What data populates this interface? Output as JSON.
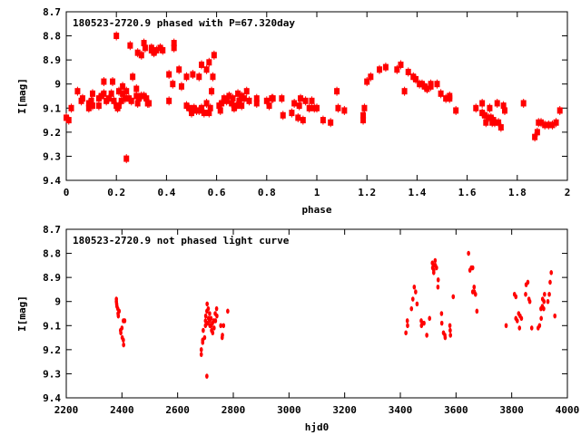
{
  "colors": {
    "points": "#ff0000",
    "axis": "#000000"
  },
  "chart_data": [
    {
      "type": "scatter",
      "title": "180523-2720.9 phased with P=67.320day",
      "xlabel": "phase",
      "ylabel": "I[mag]",
      "xlim": [
        0,
        2
      ],
      "ylim": [
        8.7,
        9.4
      ],
      "y_inverted": true,
      "xticks": [
        "0",
        "0.2",
        "0.4",
        "0.6",
        "0.8",
        "1",
        "1.2",
        "1.4",
        "1.6",
        "1.8",
        "2"
      ],
      "xtick_values": [
        0,
        0.2,
        0.4,
        0.6,
        0.8,
        1,
        1.2,
        1.4,
        1.6,
        1.8,
        2
      ],
      "yticks": [
        "8.7",
        "8.8",
        "8.9",
        "9",
        "9.1",
        "9.2",
        "9.3",
        "9.4"
      ],
      "ytick_values": [
        8.7,
        8.8,
        8.9,
        9.0,
        9.1,
        9.2,
        9.3,
        9.4
      ],
      "grid": false,
      "marker": "square-errorbar",
      "points": [
        [
          0.0,
          9.14
        ],
        [
          0.01,
          9.15
        ],
        [
          0.02,
          9.1
        ],
        [
          0.045,
          9.03
        ],
        [
          0.06,
          9.07
        ],
        [
          0.065,
          9.06
        ],
        [
          0.09,
          9.08
        ],
        [
          0.09,
          9.1
        ],
        [
          0.1,
          9.07
        ],
        [
          0.105,
          9.09
        ],
        [
          0.105,
          9.04
        ],
        [
          0.13,
          9.06
        ],
        [
          0.13,
          9.09
        ],
        [
          0.14,
          9.05
        ],
        [
          0.15,
          8.99
        ],
        [
          0.15,
          9.04
        ],
        [
          0.16,
          9.07
        ],
        [
          0.17,
          9.06
        ],
        [
          0.18,
          9.04
        ],
        [
          0.185,
          8.99
        ],
        [
          0.19,
          9.07
        ],
        [
          0.2,
          9.09
        ],
        [
          0.205,
          9.1
        ],
        [
          0.2,
          8.8
        ],
        [
          0.21,
          9.03
        ],
        [
          0.21,
          9.09
        ],
        [
          0.22,
          9.07
        ],
        [
          0.225,
          9.04
        ],
        [
          0.225,
          9.01
        ],
        [
          0.235,
          9.06
        ],
        [
          0.24,
          9.03
        ],
        [
          0.24,
          9.31
        ],
        [
          0.25,
          9.06
        ],
        [
          0.255,
          8.84
        ],
        [
          0.26,
          9.07
        ],
        [
          0.265,
          8.97
        ],
        [
          0.28,
          9.02
        ],
        [
          0.28,
          9.05
        ],
        [
          0.285,
          9.08
        ],
        [
          0.285,
          8.87
        ],
        [
          0.29,
          9.06
        ],
        [
          0.3,
          9.05
        ],
        [
          0.3,
          8.88
        ],
        [
          0.31,
          8.83
        ],
        [
          0.31,
          9.05
        ],
        [
          0.315,
          8.85
        ],
        [
          0.32,
          9.06
        ],
        [
          0.325,
          9.08
        ],
        [
          0.33,
          9.08
        ],
        [
          0.34,
          8.86
        ],
        [
          0.34,
          8.85
        ],
        [
          0.35,
          8.87
        ],
        [
          0.36,
          8.86
        ],
        [
          0.375,
          8.85
        ],
        [
          0.385,
          8.86
        ],
        [
          0.41,
          9.07
        ],
        [
          0.41,
          8.96
        ],
        [
          0.425,
          9.0
        ],
        [
          0.43,
          8.83
        ],
        [
          0.43,
          8.85
        ],
        [
          0.45,
          8.94
        ],
        [
          0.46,
          9.01
        ],
        [
          0.48,
          8.97
        ],
        [
          0.48,
          9.09
        ],
        [
          0.49,
          9.1
        ],
        [
          0.5,
          9.11
        ],
        [
          0.5,
          9.12
        ],
        [
          0.505,
          8.96
        ],
        [
          0.51,
          9.1
        ],
        [
          0.52,
          9.11
        ],
        [
          0.53,
          9.11
        ],
        [
          0.53,
          8.97
        ],
        [
          0.54,
          8.92
        ],
        [
          0.54,
          9.1
        ],
        [
          0.55,
          9.12
        ],
        [
          0.56,
          9.08
        ],
        [
          0.56,
          8.94
        ],
        [
          0.57,
          9.12
        ],
        [
          0.57,
          8.91
        ],
        [
          0.575,
          9.1
        ],
        [
          0.58,
          9.03
        ],
        [
          0.585,
          8.97
        ],
        [
          0.59,
          8.88
        ],
        [
          0.61,
          9.09
        ],
        [
          0.615,
          9.11
        ],
        [
          0.62,
          9.08
        ],
        [
          0.63,
          9.06
        ],
        [
          0.64,
          9.07
        ],
        [
          0.65,
          9.05
        ],
        [
          0.66,
          9.08
        ],
        [
          0.665,
          9.06
        ],
        [
          0.67,
          9.1
        ],
        [
          0.68,
          9.09
        ],
        [
          0.685,
          9.04
        ],
        [
          0.69,
          9.07
        ],
        [
          0.7,
          9.05
        ],
        [
          0.7,
          9.09
        ],
        [
          0.71,
          9.06
        ],
        [
          0.72,
          9.03
        ],
        [
          0.73,
          9.07
        ],
        [
          0.76,
          9.06
        ],
        [
          0.76,
          9.08
        ],
        [
          0.8,
          9.07
        ],
        [
          0.81,
          9.09
        ],
        [
          0.82,
          9.06
        ],
        [
          0.825,
          9.06
        ],
        [
          0.86,
          9.06
        ],
        [
          0.865,
          9.13
        ],
        [
          0.9,
          9.12
        ],
        [
          0.91,
          9.08
        ],
        [
          0.925,
          9.14
        ],
        [
          0.93,
          9.09
        ],
        [
          0.935,
          9.06
        ],
        [
          0.945,
          9.15
        ],
        [
          0.955,
          9.07
        ],
        [
          0.97,
          9.1
        ],
        [
          0.98,
          9.07
        ],
        [
          0.99,
          9.1
        ],
        [
          1.0,
          9.1
        ],
        [
          1.025,
          9.15
        ],
        [
          1.055,
          9.16
        ],
        [
          1.08,
          9.03
        ],
        [
          1.085,
          9.1
        ],
        [
          1.11,
          9.11
        ],
        [
          1.185,
          9.13
        ],
        [
          1.185,
          9.15
        ],
        [
          1.19,
          9.1
        ],
        [
          1.2,
          8.99
        ],
        [
          1.215,
          8.97
        ],
        [
          1.25,
          8.94
        ],
        [
          1.275,
          8.93
        ],
        [
          1.32,
          8.94
        ],
        [
          1.335,
          8.92
        ],
        [
          1.35,
          9.03
        ],
        [
          1.365,
          8.95
        ],
        [
          1.385,
          8.97
        ],
        [
          1.395,
          8.98
        ],
        [
          1.41,
          9.0
        ],
        [
          1.42,
          9.0
        ],
        [
          1.43,
          9.01
        ],
        [
          1.44,
          9.02
        ],
        [
          1.455,
          9.0
        ],
        [
          1.455,
          9.01
        ],
        [
          1.48,
          9.0
        ],
        [
          1.495,
          9.04
        ],
        [
          1.515,
          9.06
        ],
        [
          1.53,
          9.06
        ],
        [
          1.53,
          9.05
        ],
        [
          1.555,
          9.11
        ],
        [
          1.635,
          9.1
        ],
        [
          1.66,
          9.08
        ],
        [
          1.66,
          9.12
        ],
        [
          1.67,
          9.13
        ],
        [
          1.675,
          9.16
        ],
        [
          1.685,
          9.14
        ],
        [
          1.69,
          9.1
        ],
        [
          1.695,
          9.14
        ],
        [
          1.7,
          9.16
        ],
        [
          1.705,
          9.15
        ],
        [
          1.71,
          9.16
        ],
        [
          1.72,
          9.08
        ],
        [
          1.725,
          9.16
        ],
        [
          1.735,
          9.18
        ],
        [
          1.745,
          9.09
        ],
        [
          1.75,
          9.11
        ],
        [
          1.825,
          9.08
        ],
        [
          1.87,
          9.22
        ],
        [
          1.88,
          9.2
        ],
        [
          1.885,
          9.16
        ],
        [
          1.895,
          9.16
        ],
        [
          1.91,
          9.17
        ],
        [
          1.925,
          9.17
        ],
        [
          1.94,
          9.17
        ],
        [
          1.955,
          9.16
        ],
        [
          1.97,
          9.11
        ]
      ]
    },
    {
      "type": "scatter",
      "title": "180523-2720.9 not phased light curve",
      "xlabel": "hjd0",
      "ylabel": "I[mag]",
      "xlim": [
        2200,
        4000
      ],
      "ylim": [
        8.7,
        9.4
      ],
      "y_inverted": true,
      "xticks": [
        "2200",
        "2400",
        "2600",
        "2800",
        "3000",
        "3200",
        "3400",
        "3600",
        "3800",
        "4000"
      ],
      "xtick_values": [
        2200,
        2400,
        2600,
        2800,
        3000,
        3200,
        3400,
        3600,
        3800,
        4000
      ],
      "yticks": [
        "8.7",
        "8.8",
        "8.9",
        "9",
        "9.1",
        "9.2",
        "9.3",
        "9.4"
      ],
      "ytick_values": [
        8.7,
        8.8,
        8.9,
        9.0,
        9.1,
        9.2,
        9.3,
        9.4
      ],
      "grid": false,
      "marker": "ellipse",
      "points": [
        [
          2380,
          8.99
        ],
        [
          2380,
          9.0
        ],
        [
          2381,
          9.01
        ],
        [
          2382,
          9.02
        ],
        [
          2385,
          9.03
        ],
        [
          2386,
          9.05
        ],
        [
          2387,
          9.06
        ],
        [
          2390,
          9.04
        ],
        [
          2395,
          9.12
        ],
        [
          2396,
          9.13
        ],
        [
          2400,
          9.11
        ],
        [
          2401,
          9.15
        ],
        [
          2405,
          9.16
        ],
        [
          2406,
          9.18
        ],
        [
          2405,
          9.08
        ],
        [
          2410,
          9.08
        ],
        [
          2685,
          9.2
        ],
        [
          2685,
          9.22
        ],
        [
          2690,
          9.16
        ],
        [
          2690,
          9.17
        ],
        [
          2692,
          9.12
        ],
        [
          2697,
          9.15
        ],
        [
          2700,
          9.08
        ],
        [
          2700,
          9.1
        ],
        [
          2701,
          9.06
        ],
        [
          2705,
          9.04
        ],
        [
          2706,
          9.01
        ],
        [
          2705,
          9.31
        ],
        [
          2707,
          9.09
        ],
        [
          2710,
          9.03
        ],
        [
          2711,
          9.07
        ],
        [
          2715,
          9.05
        ],
        [
          2715,
          9.08
        ],
        [
          2716,
          9.1
        ],
        [
          2720,
          9.07
        ],
        [
          2721,
          9.1
        ],
        [
          2722,
          9.12
        ],
        [
          2725,
          9.09
        ],
        [
          2726,
          9.13
        ],
        [
          2730,
          9.08
        ],
        [
          2731,
          9.11
        ],
        [
          2735,
          9.05
        ],
        [
          2736,
          9.08
        ],
        [
          2740,
          9.03
        ],
        [
          2741,
          9.06
        ],
        [
          2755,
          9.1
        ],
        [
          2760,
          9.15
        ],
        [
          2761,
          9.14
        ],
        [
          2765,
          9.1
        ],
        [
          2780,
          9.04
        ],
        [
          3420,
          9.13
        ],
        [
          3425,
          9.08
        ],
        [
          3426,
          9.1
        ],
        [
          3440,
          9.03
        ],
        [
          3445,
          8.99
        ],
        [
          3450,
          8.94
        ],
        [
          3455,
          8.96
        ],
        [
          3460,
          9.01
        ],
        [
          3475,
          9.08
        ],
        [
          3476,
          9.1
        ],
        [
          3480,
          9.09
        ],
        [
          3485,
          9.09
        ],
        [
          3495,
          9.14
        ],
        [
          3505,
          9.07
        ],
        [
          3515,
          8.84
        ],
        [
          3516,
          8.86
        ],
        [
          3520,
          8.87
        ],
        [
          3520,
          8.88
        ],
        [
          3521,
          8.85
        ],
        [
          3525,
          8.83
        ],
        [
          3526,
          8.85
        ],
        [
          3530,
          8.86
        ],
        [
          3535,
          8.94
        ],
        [
          3536,
          8.91
        ],
        [
          3548,
          9.05
        ],
        [
          3549,
          9.09
        ],
        [
          3555,
          9.13
        ],
        [
          3560,
          9.14
        ],
        [
          3561,
          9.15
        ],
        [
          3578,
          9.1
        ],
        [
          3579,
          9.12
        ],
        [
          3580,
          9.14
        ],
        [
          3590,
          8.98
        ],
        [
          3645,
          8.8
        ],
        [
          3650,
          8.87
        ],
        [
          3655,
          8.86
        ],
        [
          3660,
          8.86
        ],
        [
          3660,
          8.96
        ],
        [
          3665,
          8.94
        ],
        [
          3666,
          8.96
        ],
        [
          3670,
          8.97
        ],
        [
          3675,
          9.04
        ],
        [
          3780,
          9.1
        ],
        [
          3810,
          8.97
        ],
        [
          3815,
          8.98
        ],
        [
          3815,
          9.07
        ],
        [
          3820,
          9.08
        ],
        [
          3825,
          9.05
        ],
        [
          3828,
          9.11
        ],
        [
          3830,
          9.06
        ],
        [
          3835,
          9.07
        ],
        [
          3850,
          8.97
        ],
        [
          3852,
          8.93
        ],
        [
          3858,
          8.92
        ],
        [
          3862,
          8.99
        ],
        [
          3865,
          9.0
        ],
        [
          3872,
          9.11
        ],
        [
          3895,
          9.11
        ],
        [
          3900,
          9.1
        ],
        [
          3905,
          9.03
        ],
        [
          3906,
          9.07
        ],
        [
          3910,
          9.02
        ],
        [
          3911,
          8.99
        ],
        [
          3915,
          9.03
        ],
        [
          3916,
          9.0
        ],
        [
          3918,
          8.97
        ],
        [
          3930,
          9.0
        ],
        [
          3935,
          8.97
        ],
        [
          3938,
          8.92
        ],
        [
          3942,
          8.88
        ],
        [
          3955,
          9.06
        ]
      ]
    }
  ]
}
